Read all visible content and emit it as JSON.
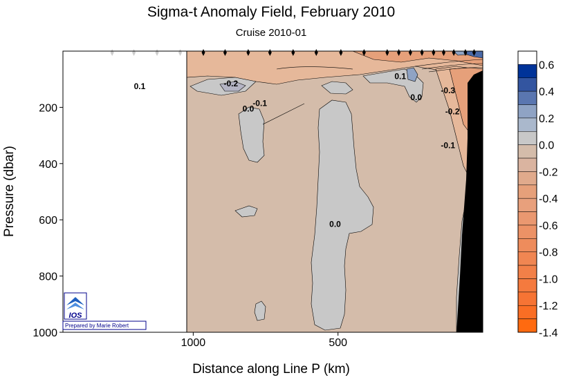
{
  "chart_data": {
    "type": "heatmap",
    "title": "Sigma-t Anomaly Field,  February 2010",
    "subtitle": "Cruise 2010-01",
    "xlabel": "Distance along Line P  (km)",
    "ylabel": "Pressure  (dbar)",
    "x_ticks": [
      "1000",
      "500"
    ],
    "y_ticks": [
      "200",
      "400",
      "600",
      "800",
      "1000"
    ],
    "x_range_km": [
      1450,
      0
    ],
    "y_range_dbar": [
      0,
      1000
    ],
    "colorbar": {
      "labels": [
        "0.6",
        "0.4",
        "0.2",
        "0.0",
        "-0.2",
        "-0.4",
        "-0.6",
        "-0.8",
        "-1.0",
        "-1.2",
        "-1.4"
      ],
      "levels": [
        0.6,
        0.5,
        0.4,
        0.3,
        0.2,
        0.1,
        0.0,
        -0.1,
        -0.2,
        -0.3,
        -0.4,
        -0.5,
        -0.6,
        -0.7,
        -0.8,
        -0.9,
        -1.0,
        -1.1,
        -1.2,
        -1.3,
        -1.4
      ],
      "colors": {
        "positive_high": "#003399",
        "positive_mid": "#8fa3c4",
        "near_zero": "#c8c8c8",
        "slight_negative": "#d4bcaa",
        "negative_mid": "#e6a07a",
        "negative_high": "#ff6a10"
      }
    },
    "contour_labels": [
      {
        "value": "0.1",
        "x_km": 1185,
        "p_dbar": 135
      },
      {
        "value": "-0.2",
        "x_km": 870,
        "p_dbar": 125
      },
      {
        "value": "0.0",
        "x_km": 810,
        "p_dbar": 215
      },
      {
        "value": "-0.1",
        "x_km": 770,
        "p_dbar": 195
      },
      {
        "value": "0.1",
        "x_km": 285,
        "p_dbar": 100
      },
      {
        "value": "0.0",
        "x_km": 230,
        "p_dbar": 175
      },
      {
        "value": "-0.3",
        "x_km": 120,
        "p_dbar": 150
      },
      {
        "value": "-0.2",
        "x_km": 105,
        "p_dbar": 225
      },
      {
        "value": "-0.1",
        "x_km": 120,
        "p_dbar": 345
      },
      {
        "value": "0.0",
        "x_km": 510,
        "p_dbar": 625
      }
    ],
    "stations_km": [
      1280,
      1205,
      1125,
      1045,
      965,
      890,
      810,
      735,
      655,
      575,
      490,
      410,
      330,
      290,
      250,
      210,
      170,
      135,
      100,
      60,
      30
    ],
    "data_coverage_km": [
      1000,
      0
    ],
    "bathymetry": "black seafloor near 0 km"
  },
  "credit": {
    "logo": "IOS",
    "text": "Prepared by Marie Robert"
  }
}
